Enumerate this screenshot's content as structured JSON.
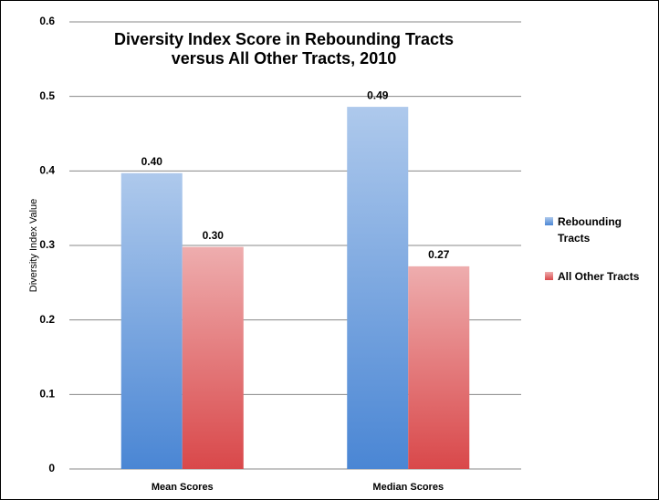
{
  "chart_data": {
    "type": "bar",
    "title": "Diversity Index Score in Rebounding Tracts versus All Other Tracts, 2010",
    "y_label": "Diversity Index Value",
    "categories": [
      "Mean Scores",
      "Median Scores"
    ],
    "series": [
      {
        "name": "Rebounding Tracts",
        "color": "#4a86d4",
        "values": [
          0.397,
          0.486
        ],
        "value_labels": [
          "0.40",
          "0.49"
        ]
      },
      {
        "name": "All Other Tracts",
        "color": "#d9484a",
        "values": [
          0.298,
          0.272
        ],
        "value_labels": [
          "0.30",
          "0.27"
        ]
      }
    ],
    "ylim": [
      0,
      0.6
    ],
    "yticks": [
      0,
      0.1,
      0.2,
      0.3,
      0.4,
      0.5,
      0.6
    ],
    "grid": true,
    "legend": "right"
  }
}
